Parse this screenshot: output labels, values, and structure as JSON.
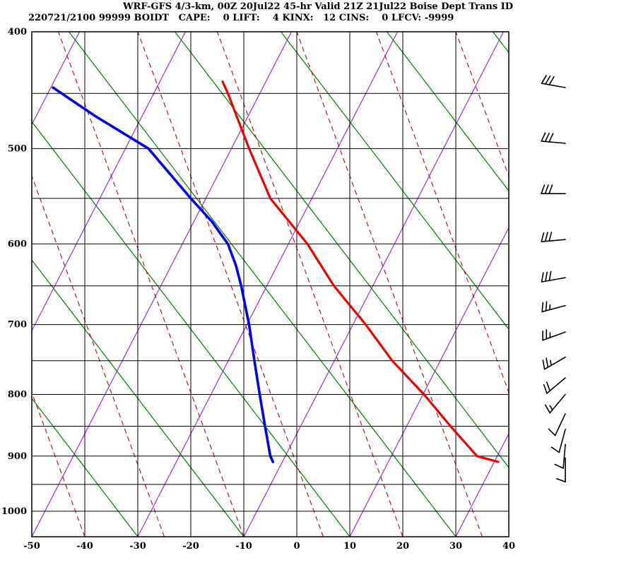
{
  "header": {
    "title_line": "WRF-GFS 4/3-km, 00Z 20Jul22 45-hr Valid 21Z 21Jul22 Boise Dept Trans ID",
    "info_line": "220721/2100 99999 BOIDT   CAPE:    0 LIFT:    4 KINX:   12 CINS:    0 LFCV: -9999"
  },
  "chart_data": {
    "type": "line",
    "title": "WRF-GFS 4/3-km, 00Z 20Jul22 45-hr Valid 21Z 21Jul22 Boise Dept Trans ID",
    "station_id": "BOIDT",
    "sounding_time": "220721/2100",
    "station_number": "99999",
    "indices": {
      "CAPE": 0,
      "LIFT": 4,
      "KINX": 12,
      "CINS": 0,
      "LFCV": -9999
    },
    "x_axis": {
      "min": -50,
      "max": 40,
      "ticks": [
        -50,
        -40,
        -30,
        -20,
        -10,
        0,
        10,
        20,
        30,
        40
      ],
      "unit": "C"
    },
    "y_axis": {
      "min": 400,
      "max": 1050,
      "scale": "log",
      "ticks": [
        400,
        500,
        600,
        700,
        800,
        900,
        1000
      ],
      "gridline_interval": 50,
      "unit": "hPa"
    },
    "series": [
      {
        "name": "temperature",
        "color": "#ee0000",
        "width": 3.2,
        "points": [
          [
            440,
            -14
          ],
          [
            450,
            -13
          ],
          [
            500,
            -9
          ],
          [
            550,
            -5
          ],
          [
            600,
            2
          ],
          [
            650,
            7
          ],
          [
            700,
            13
          ],
          [
            750,
            18
          ],
          [
            800,
            24
          ],
          [
            850,
            29
          ],
          [
            900,
            34
          ],
          [
            905,
            36
          ],
          [
            910,
            38
          ]
        ]
      },
      {
        "name": "dewpoint",
        "color": "#0000ee",
        "width": 3.6,
        "points": [
          [
            445,
            -46
          ],
          [
            470,
            -38
          ],
          [
            500,
            -28
          ],
          [
            550,
            -20
          ],
          [
            575,
            -16
          ],
          [
            600,
            -13
          ],
          [
            625,
            -11.5
          ],
          [
            650,
            -10.5
          ],
          [
            700,
            -9
          ],
          [
            750,
            -8
          ],
          [
            800,
            -7
          ],
          [
            850,
            -6
          ],
          [
            875,
            -5.5
          ],
          [
            900,
            -5
          ],
          [
            910,
            -4.5
          ]
        ]
      }
    ],
    "wind_barbs": {
      "color": "#000000",
      "levels": [
        {
          "p": 445,
          "dir": 280,
          "spd": 30
        },
        {
          "p": 495,
          "dir": 275,
          "spd": 30
        },
        {
          "p": 545,
          "dir": 270,
          "spd": 30
        },
        {
          "p": 595,
          "dir": 265,
          "spd": 30
        },
        {
          "p": 640,
          "dir": 260,
          "spd": 30
        },
        {
          "p": 675,
          "dir": 255,
          "spd": 25
        },
        {
          "p": 710,
          "dir": 250,
          "spd": 25
        },
        {
          "p": 745,
          "dir": 240,
          "spd": 25
        },
        {
          "p": 775,
          "dir": 230,
          "spd": 20
        },
        {
          "p": 800,
          "dir": 220,
          "spd": 15
        },
        {
          "p": 830,
          "dir": 205,
          "spd": 10
        },
        {
          "p": 855,
          "dir": 195,
          "spd": 10
        },
        {
          "p": 880,
          "dir": 185,
          "spd": 10
        },
        {
          "p": 903,
          "dir": 180,
          "spd": 10
        }
      ]
    },
    "background_lines": {
      "grid_color": "#000000",
      "dry_adiabats": {
        "color": "#008000",
        "style": "solid",
        "bottom_temps": [
          -50,
          -30,
          -10,
          10,
          30,
          50,
          70,
          90,
          110
        ],
        "top_shift_c": -73
      },
      "moist_adiabats": {
        "color": "#aa2222",
        "style": "dashed",
        "bottom_temps": [
          -40,
          -25,
          -10,
          5,
          20,
          35,
          50,
          65
        ],
        "top_shift_c": -35
      },
      "skew_isopleths": {
        "color": "#9933cc",
        "style": "solid",
        "bottom_temps": [
          -90,
          -70,
          -50,
          -30,
          -10,
          10,
          30
        ],
        "top_shift_c": 49
      }
    }
  }
}
